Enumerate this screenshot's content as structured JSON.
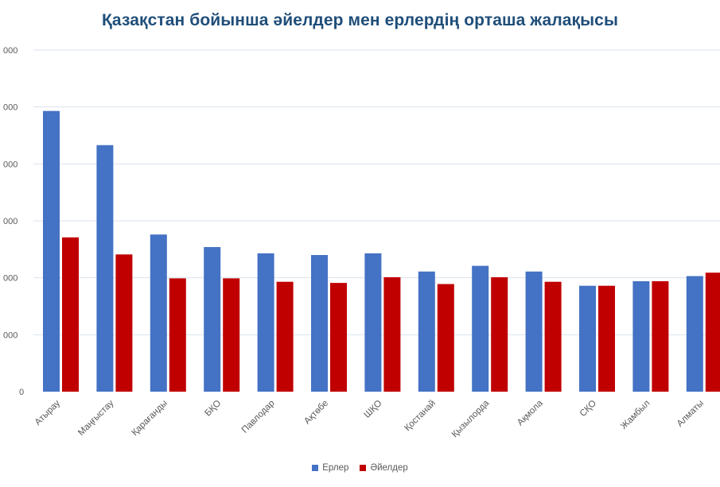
{
  "chart_data": {
    "type": "bar",
    "title": "Қазақстан бойынша әйелдер мен ерлердің орташа жалақысы",
    "xlabel": "",
    "ylabel": "",
    "y_ticks": [
      "0",
      "000",
      "000",
      "000",
      "000",
      "000",
      "000"
    ],
    "ylim": [
      0,
      600000
    ],
    "grid": true,
    "legend_position": "bottom",
    "categories": [
      "Атырау",
      "Маңғыстау",
      "Қарағанды",
      "БҚО",
      "Павлодар",
      "Ақтөбе",
      "ШҚО",
      "Қостанай",
      "Қызылорда",
      "Ақмола",
      "СҚО",
      "Жамбыл",
      "Алматы"
    ],
    "series": [
      {
        "name": "Ерлер",
        "color": "#4472c4",
        "values": [
          493000,
          433000,
          276000,
          254000,
          243000,
          240000,
          243000,
          211000,
          221000,
          211000,
          186000,
          194000,
          203000
        ]
      },
      {
        "name": "Әйелдер",
        "color": "#c00000",
        "values": [
          271000,
          241000,
          199000,
          199000,
          193000,
          191000,
          201000,
          189000,
          201000,
          193000,
          186000,
          194000,
          209000
        ]
      }
    ]
  }
}
